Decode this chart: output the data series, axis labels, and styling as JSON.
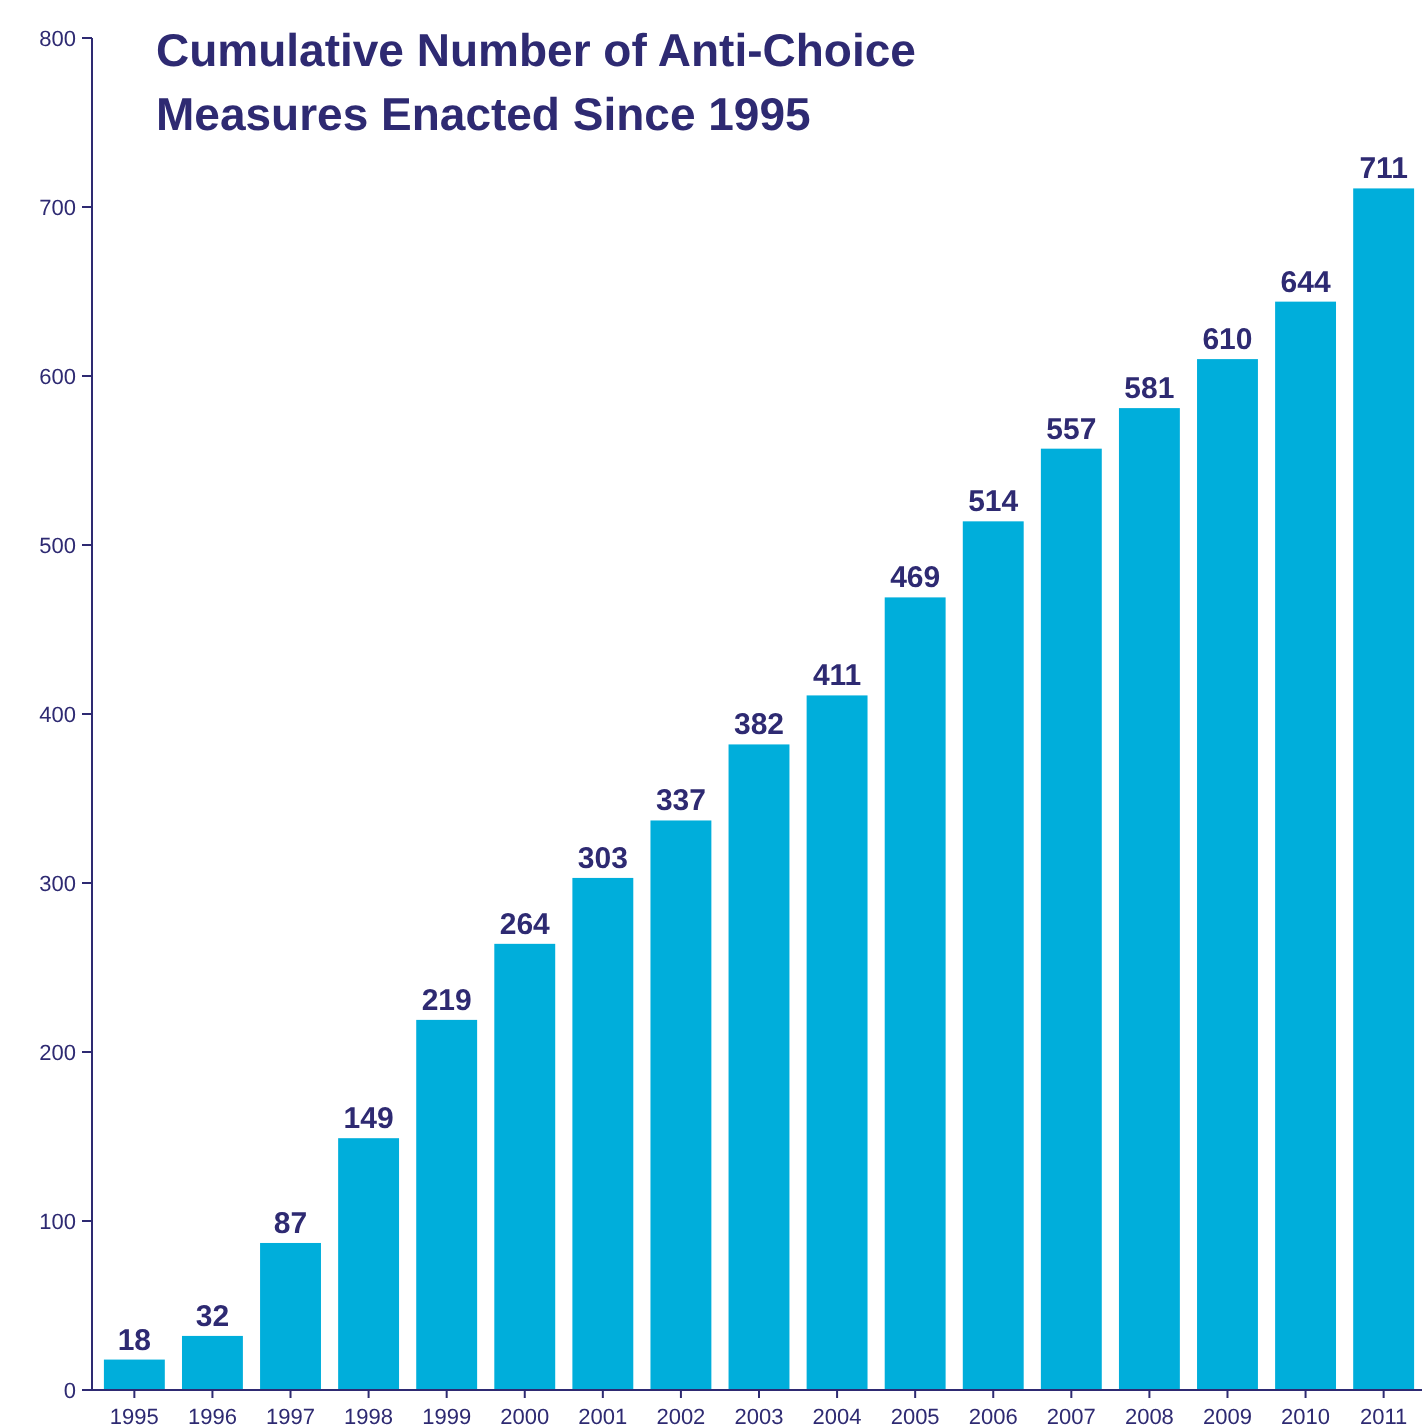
{
  "chart_data": {
    "type": "bar",
    "title": "Cumulative Number of Anti-Choice\nMeasures Enacted Since 1995",
    "categories": [
      "1995",
      "1996",
      "1997",
      "1998",
      "1999",
      "2000",
      "2001",
      "2002",
      "2003",
      "2004",
      "2005",
      "2006",
      "2007",
      "2008",
      "2009",
      "2010",
      "2011"
    ],
    "values": [
      18,
      32,
      87,
      149,
      219,
      264,
      303,
      337,
      382,
      411,
      469,
      514,
      557,
      581,
      610,
      644,
      711
    ],
    "color": "#00aedb",
    "ylim": [
      0,
      800
    ],
    "yticks": [
      0,
      100,
      200,
      300,
      400,
      500,
      600,
      700,
      800
    ],
    "data_labels": true
  }
}
